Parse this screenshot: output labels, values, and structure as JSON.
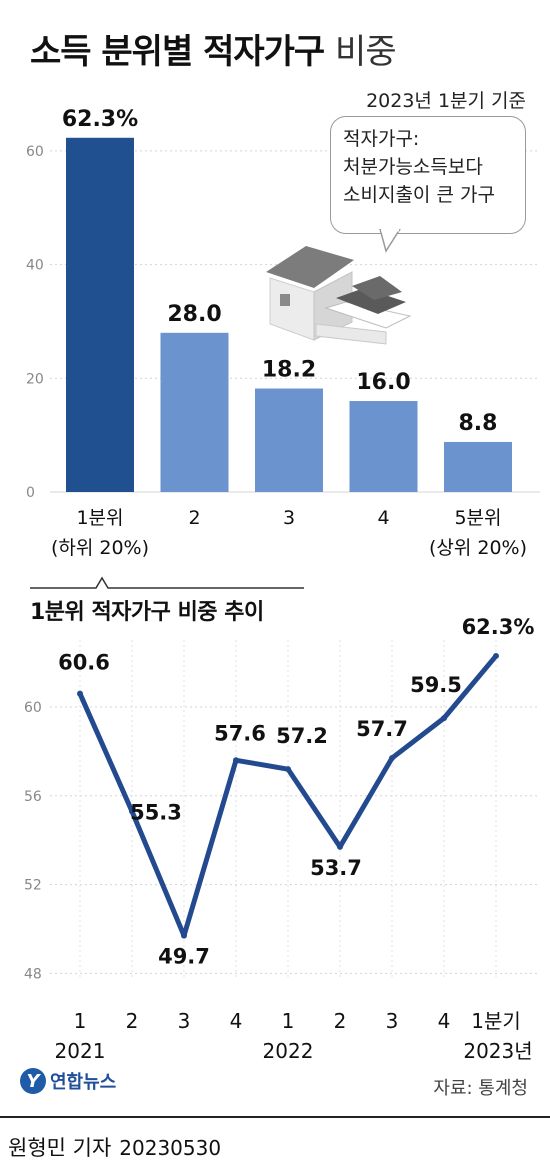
{
  "title_bold": "소득 분위별 적자가구",
  "title_light": "비중",
  "basis": "2023년 1분기 기준",
  "note_lines": [
    "적자가구:",
    "처분가능소득보다",
    "소비지출이 큰 가구"
  ],
  "chart_data": [
    {
      "type": "bar",
      "categories": [
        [
          "1분위",
          "(하위 20%)"
        ],
        [
          "2"
        ],
        [
          "3"
        ],
        [
          "4"
        ],
        [
          "5분위",
          "(상위 20%)"
        ]
      ],
      "values": [
        62.3,
        28.0,
        18.2,
        16.0,
        8.8
      ],
      "data_labels": [
        "62.3%",
        "28.0",
        "18.2",
        "16.0",
        "8.8"
      ],
      "ylim": [
        0,
        70
      ],
      "yticks": [
        0,
        20,
        40,
        60
      ],
      "colors": [
        "#20508f",
        "#6b93cd",
        "#6b93cd",
        "#6b93cd",
        "#6b93cd"
      ]
    },
    {
      "type": "line",
      "title": "1분위 적자가구 비중 추이",
      "x": [
        "1",
        "2",
        "3",
        "4",
        "1",
        "2",
        "3",
        "4",
        "1분기"
      ],
      "x_groups": [
        {
          "label": "2021",
          "at": 0
        },
        {
          "label": "2022",
          "at": 4
        },
        {
          "label": "2023년",
          "at": 8
        }
      ],
      "values": [
        60.6,
        55.3,
        49.7,
        57.6,
        57.2,
        53.7,
        57.7,
        59.5,
        62.3
      ],
      "data_labels": [
        "60.6",
        "55.3",
        "49.7",
        "57.6",
        "57.2",
        "53.7",
        "57.7",
        "59.5",
        "62.3%"
      ],
      "ylim": [
        47,
        64
      ],
      "yticks": [
        48,
        52,
        56,
        60
      ],
      "color": "#234a8f"
    }
  ],
  "logo_text": "연합뉴스",
  "source": "자료: 통계청",
  "credit": "원형민 기자",
  "credit_date": "20230530"
}
